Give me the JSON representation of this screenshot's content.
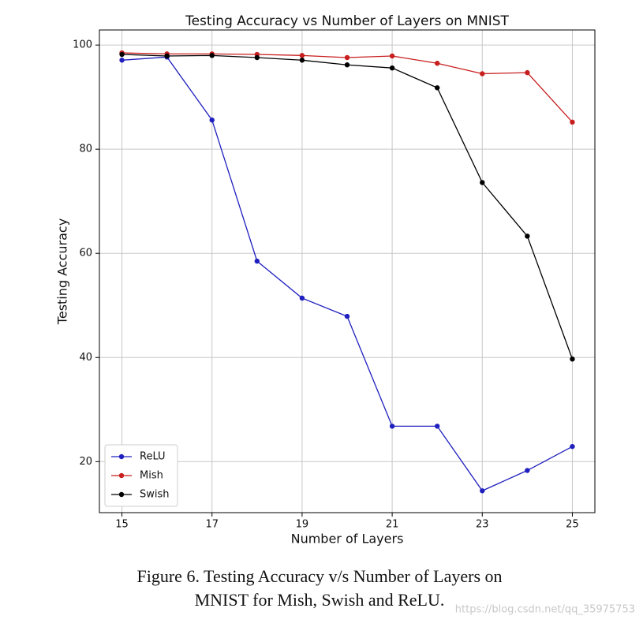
{
  "chart_data": {
    "type": "line",
    "title": "Testing Accuracy vs Number of Layers on MNIST",
    "x_label": "Number of Layers",
    "y_label": "Testing Accuracy",
    "x": [
      15,
      16,
      17,
      18,
      19,
      20,
      21,
      22,
      23,
      24,
      25
    ],
    "series": [
      {
        "name": "ReLU",
        "color": "#1f1fbf",
        "values": [
          97.1,
          97.7,
          85.6,
          58.5,
          51.4,
          47.9,
          26.8,
          26.8,
          14.4,
          18.3,
          22.9
        ]
      },
      {
        "name": "Mish",
        "color": "#c81e1e",
        "values": [
          98.5,
          98.3,
          98.3,
          98.2,
          98.0,
          97.6,
          97.9,
          96.5,
          94.5,
          94.7,
          85.2
        ]
      },
      {
        "name": "Swish",
        "color": "#000000",
        "values": [
          98.2,
          97.9,
          98.0,
          97.6,
          97.1,
          96.2,
          95.6,
          91.8,
          73.6,
          63.3,
          39.7
        ]
      }
    ],
    "xlim": [
      14.5,
      25.5
    ],
    "xticks": [
      15,
      17,
      19,
      21,
      23,
      25
    ],
    "ylim": [
      10.2,
      102.9
    ],
    "yticks": [
      20,
      40,
      60,
      80,
      100
    ],
    "grid": true,
    "legend": "lower left",
    "caption": [
      "Figure 6. Testing Accuracy v/s Number of Layers on",
      "MNIST for Mish, Swish and ReLU."
    ],
    "watermark": "https://blog.csdn.net/qq_35975753"
  }
}
